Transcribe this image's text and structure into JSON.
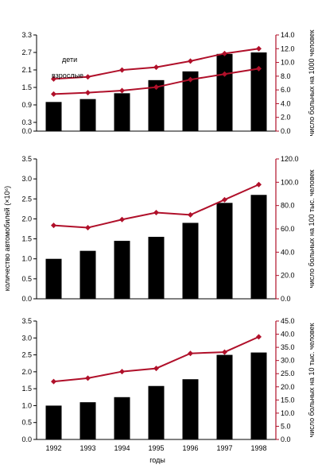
{
  "shared": {
    "years": [
      "1992",
      "1993",
      "1994",
      "1995",
      "1996",
      "1997",
      "1998"
    ],
    "xlabel": "годы",
    "left_ylabel": "количество автомобилей (×10⁶)",
    "bar_color": "#000000",
    "line_color": "#b0102a",
    "cars": [
      1.0,
      1.1,
      1.3,
      1.75,
      2.05,
      2.65,
      2.7
    ]
  },
  "chart_data": [
    {
      "type": "bar+line",
      "categories": [
        "1992",
        "1993",
        "1994",
        "1995",
        "1996",
        "1997",
        "1998"
      ],
      "bar_values": [
        1.0,
        1.1,
        1.3,
        1.75,
        2.05,
        2.65,
        2.7
      ],
      "left_ylim": [
        0.0,
        3.3
      ],
      "left_ticks": [
        "0.0",
        "0.3",
        "0.9",
        "1.5",
        "2.1",
        "2.7",
        "3.3"
      ],
      "left_tick_values": [
        0.0,
        0.3,
        0.9,
        1.5,
        2.1,
        2.7,
        3.3
      ],
      "right_ylim": [
        0,
        14
      ],
      "right_ticks": [
        "0.0",
        "2.0",
        "4.0",
        "6.0",
        "8.0",
        "10.0",
        "12.0",
        "14.0"
      ],
      "right_tick_values": [
        0,
        2,
        4,
        6,
        8,
        10,
        12,
        14
      ],
      "right_ylabel": "число больных на 1000 человек",
      "series": [
        {
          "name": "дети",
          "values": [
            7.6,
            7.9,
            8.9,
            9.3,
            10.2,
            11.3,
            12.0
          ]
        },
        {
          "name": "взрослые",
          "values": [
            5.4,
            5.6,
            5.9,
            6.4,
            7.5,
            8.3,
            9.1
          ]
        }
      ]
    },
    {
      "type": "bar+line",
      "categories": [
        "1992",
        "1993",
        "1994",
        "1995",
        "1996",
        "1997",
        "1998"
      ],
      "bar_values": [
        1.0,
        1.2,
        1.45,
        1.55,
        1.9,
        2.4,
        2.6
      ],
      "left_ylim": [
        0.0,
        3.5
      ],
      "left_ticks": [
        "0.0",
        "0.5",
        "1.0",
        "1.5",
        "2.0",
        "2.5",
        "3.0",
        "3.5"
      ],
      "left_tick_values": [
        0.0,
        0.5,
        1.0,
        1.5,
        2.0,
        2.5,
        3.0,
        3.5
      ],
      "right_ylim": [
        0,
        120
      ],
      "right_ticks": [
        "0.0",
        "20.0",
        "40.0",
        "60.0",
        "80.0",
        "100.0",
        "120.0"
      ],
      "right_tick_values": [
        0,
        20,
        40,
        60,
        80,
        100,
        120
      ],
      "right_ylabel": "число больных на 100 тыс. человек",
      "series": [
        {
          "values": [
            63,
            61,
            68,
            74,
            72,
            85,
            98
          ]
        }
      ]
    },
    {
      "type": "bar+line",
      "categories": [
        "1992",
        "1993",
        "1994",
        "1995",
        "1996",
        "1997",
        "1998"
      ],
      "bar_values": [
        1.0,
        1.1,
        1.25,
        1.58,
        1.78,
        2.5,
        2.57
      ],
      "left_ylim": [
        0.0,
        3.5
      ],
      "left_ticks": [
        "0.0",
        "0.5",
        "1.0",
        "1.5",
        "2.0",
        "2.5",
        "3.0",
        "3.5"
      ],
      "left_tick_values": [
        0.0,
        0.5,
        1.0,
        1.5,
        2.0,
        2.5,
        3.0,
        3.5
      ],
      "right_ylim": [
        0,
        45
      ],
      "right_ticks": [
        "0.0",
        "5.0",
        "10.0",
        "15.0",
        "20.0",
        "25.0",
        "30.0",
        "35.0",
        "40.0",
        "45.0"
      ],
      "right_tick_values": [
        0,
        5,
        10,
        15,
        20,
        25,
        30,
        35,
        40,
        45
      ],
      "right_ylabel": "число больных на 10 тыс. человек",
      "series": [
        {
          "values": [
            22,
            23.3,
            25.8,
            27,
            32.7,
            33.2,
            39
          ]
        }
      ]
    }
  ]
}
